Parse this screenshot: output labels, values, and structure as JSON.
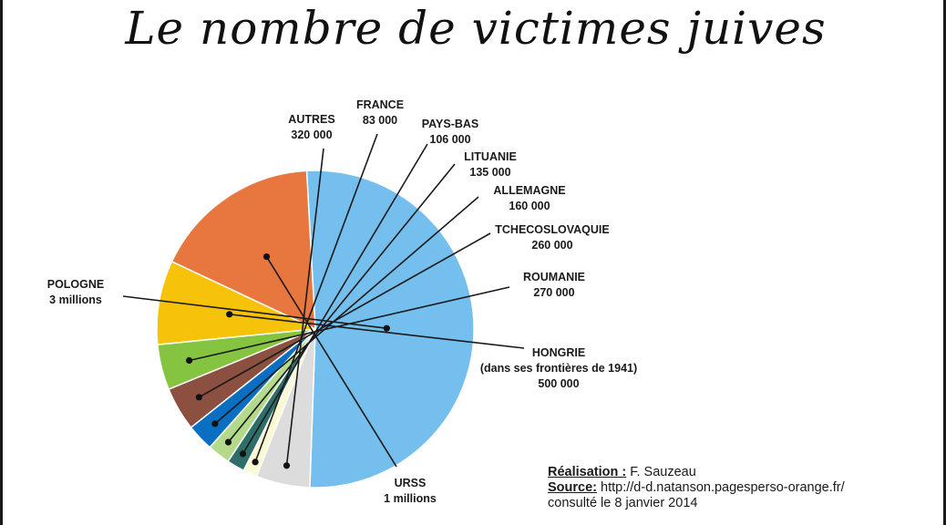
{
  "title": "Le nombre de victimes juives",
  "chart_data": {
    "type": "pie",
    "title": "Le nombre de victimes juives",
    "slices": [
      {
        "label": "POLOGNE",
        "value_label": "3 millions",
        "value": 3000000,
        "color": "#74bfee"
      },
      {
        "label": "URSS",
        "value_label": "1 millions",
        "value": 1000000,
        "color": "#e8773f"
      },
      {
        "label": "HONGRIE",
        "sublabel": "(dans ses frontières de 1941)",
        "value_label": "500 000",
        "value": 500000,
        "color": "#f7c30a"
      },
      {
        "label": "ROUMANIE",
        "value_label": "270 000",
        "value": 270000,
        "color": "#84c440"
      },
      {
        "label": "TCHECOSLOVAQUIE",
        "value_label": "260 000",
        "value": 260000,
        "color": "#8b5040"
      },
      {
        "label": "ALLEMAGNE",
        "value_label": "160 000",
        "value": 160000,
        "color": "#0a6fc2"
      },
      {
        "label": "LITUANIE",
        "value_label": "135 000",
        "value": 135000,
        "color": "#b3da8a"
      },
      {
        "label": "PAYS-BAS",
        "value_label": "106 000",
        "value": 106000,
        "color": "#2e6e68"
      },
      {
        "label": "FRANCE",
        "value_label": "83 000",
        "value": 83000,
        "color": "#fbf8d4"
      },
      {
        "label": "AUTRES",
        "value_label": "320 000",
        "value": 320000,
        "color": "#dcdcdc"
      }
    ]
  },
  "credits": {
    "realisation_label": "Réalisation :",
    "realisation_value": "F. Sauzeau",
    "source_label": "Source:",
    "source_value": "http://d-d.natanson.pagesperso-orange.fr/",
    "consulted": "consulté le 8 janvier 2014"
  }
}
